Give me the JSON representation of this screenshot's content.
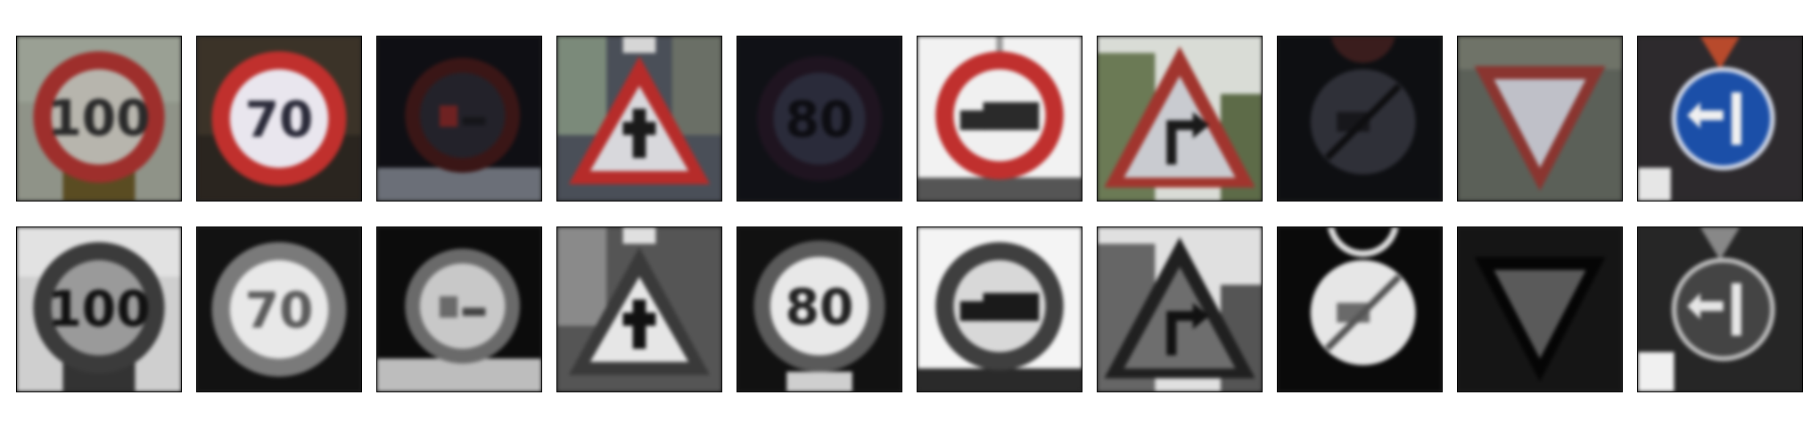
{
  "figure": {
    "rows": [
      {
        "name": "original-color",
        "tiles": [
          {
            "sign": "speed-limit-100",
            "text": "100",
            "bg": "#8f9388"
          },
          {
            "sign": "speed-limit-70",
            "text": "70",
            "bg": "#3b3328"
          },
          {
            "sign": "no-overtaking-trucks",
            "text": "",
            "bg": "#0f0f14"
          },
          {
            "sign": "right-of-way-intersection",
            "text": "",
            "bg": "#4a4f58"
          },
          {
            "sign": "speed-limit-80",
            "text": "80",
            "bg": "#101116"
          },
          {
            "sign": "no-trucks",
            "text": "",
            "bg": "#f2f2f2"
          },
          {
            "sign": "dangerous-curve-right",
            "text": "",
            "bg": "#d9dcd6"
          },
          {
            "sign": "end-no-overtaking-trucks",
            "text": "",
            "bg": "#0e0f12"
          },
          {
            "sign": "yield",
            "text": "",
            "bg": "#5b6058"
          },
          {
            "sign": "keep-right",
            "text": "",
            "bg": "#2d2a2d"
          }
        ]
      },
      {
        "name": "grayscale-equalized",
        "tiles": [
          {
            "sign": "speed-limit-100",
            "text": "100",
            "bg": "#cfcfcf"
          },
          {
            "sign": "speed-limit-70",
            "text": "70",
            "bg": "#121212"
          },
          {
            "sign": "no-overtaking-trucks",
            "text": "",
            "bg": "#0c0c0c"
          },
          {
            "sign": "right-of-way-intersection",
            "text": "",
            "bg": "#555555"
          },
          {
            "sign": "speed-limit-80",
            "text": "80",
            "bg": "#111111"
          },
          {
            "sign": "no-trucks",
            "text": "",
            "bg": "#f4f4f4"
          },
          {
            "sign": "dangerous-curve-right",
            "text": "",
            "bg": "#e0e0e0"
          },
          {
            "sign": "end-no-overtaking-trucks",
            "text": "",
            "bg": "#0a0a0a"
          },
          {
            "sign": "yield",
            "text": "",
            "bg": "#151515"
          },
          {
            "sign": "keep-right",
            "text": "",
            "bg": "#262626"
          }
        ]
      }
    ]
  }
}
